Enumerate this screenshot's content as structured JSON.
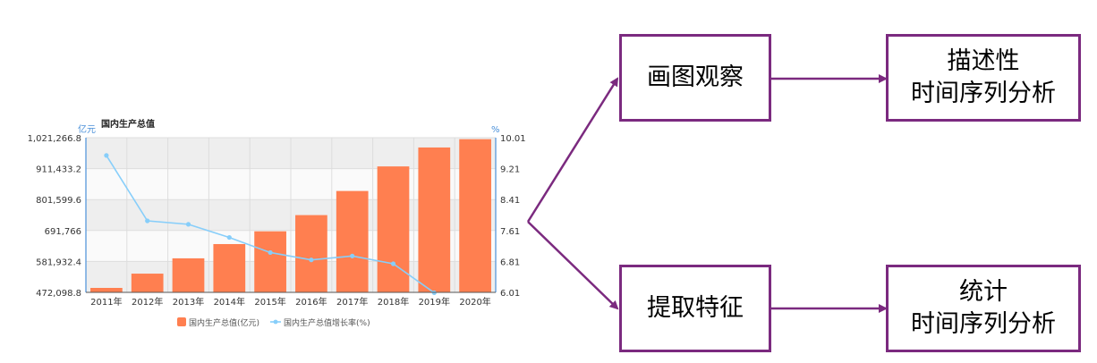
{
  "chart_data": {
    "type": "bar",
    "title": "国内生产总值",
    "left_unit": "亿元",
    "right_unit": "%",
    "categories": [
      "2011年",
      "2012年",
      "2013年",
      "2014年",
      "2015年",
      "2016年",
      "2017年",
      "2018年",
      "2019年",
      "2020年"
    ],
    "series": [
      {
        "name": "国内生产总值(亿元)",
        "type": "bar",
        "axis": "left",
        "color": "#ff7f50",
        "values": [
          487940,
          538580,
          592963,
          643563,
          688858,
          746395,
          832036,
          919281,
          986515,
          1015986
        ]
      },
      {
        "name": "国内生产总值增长率(%)",
        "type": "line",
        "axis": "right",
        "color": "#87cefa",
        "values": [
          9.55,
          7.86,
          7.77,
          7.43,
          7.04,
          6.85,
          6.95,
          6.75,
          6.0,
          null
        ]
      }
    ],
    "y_left": {
      "min": 472098.8,
      "max": 1021266.8,
      "ticks": [
        "1,021,266.8",
        "911,433.2",
        "801,599.6",
        "691,766",
        "581,932.4",
        "472,098.8"
      ]
    },
    "y_right": {
      "min": 6.01,
      "max": 10.01,
      "ticks": [
        "10.01",
        "9.21",
        "8.41",
        "7.61",
        "6.81",
        "6.01"
      ]
    },
    "grid": true,
    "legend_position": "bottom"
  },
  "diagram": {
    "observe": "画图观察",
    "extract": "提取特征",
    "describe": [
      "描述性",
      "时间序列分析"
    ],
    "statistic": [
      "统计",
      "时间序列分析"
    ]
  },
  "colors": {
    "accent": "#7b2a7f",
    "axis_label": "#4a90d9"
  }
}
